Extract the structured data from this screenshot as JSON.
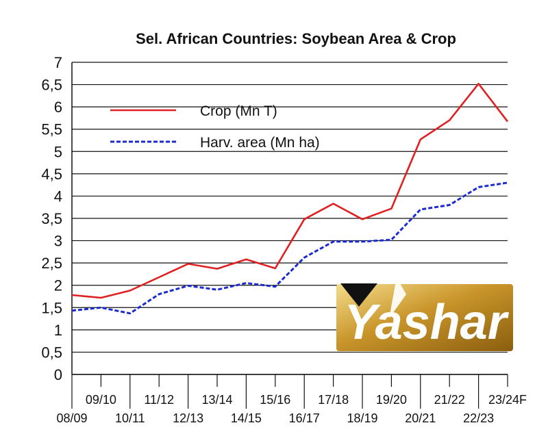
{
  "chart_data": {
    "type": "line",
    "title": "Sel. African Countries: Soybean Area & Crop",
    "xlabel": "",
    "ylabel": "",
    "ylim": [
      0,
      7
    ],
    "yticks": [
      "0",
      "0,5",
      "1",
      "1,5",
      "2",
      "2,5",
      "3",
      "3,5",
      "4",
      "4,5",
      "5",
      "5,5",
      "6",
      "6,5",
      "7"
    ],
    "categories": [
      "08/09",
      "09/10",
      "10/11",
      "11/12",
      "12/13",
      "13/14",
      "14/15",
      "15/16",
      "16/17",
      "17/18",
      "18/19",
      "19/20",
      "20/21",
      "21/22",
      "22/23",
      "23/24F"
    ],
    "grid": true,
    "legend_position": "top-left",
    "series": [
      {
        "name": "Crop (Mn T)",
        "color": "#e02020",
        "style": "solid",
        "values": [
          1.78,
          1.72,
          1.88,
          2.18,
          2.48,
          2.37,
          2.58,
          2.38,
          3.48,
          3.83,
          3.48,
          3.72,
          5.27,
          5.7,
          6.52,
          5.67
        ]
      },
      {
        "name": "Harv. area (Mn ha)",
        "color": "#1a2bd0",
        "style": "dashed",
        "values": [
          1.43,
          1.5,
          1.37,
          1.8,
          1.99,
          1.9,
          2.05,
          1.97,
          2.62,
          2.98,
          2.98,
          3.02,
          3.7,
          3.8,
          4.2,
          4.3
        ]
      }
    ]
  },
  "watermark": {
    "text": "Yashar"
  }
}
